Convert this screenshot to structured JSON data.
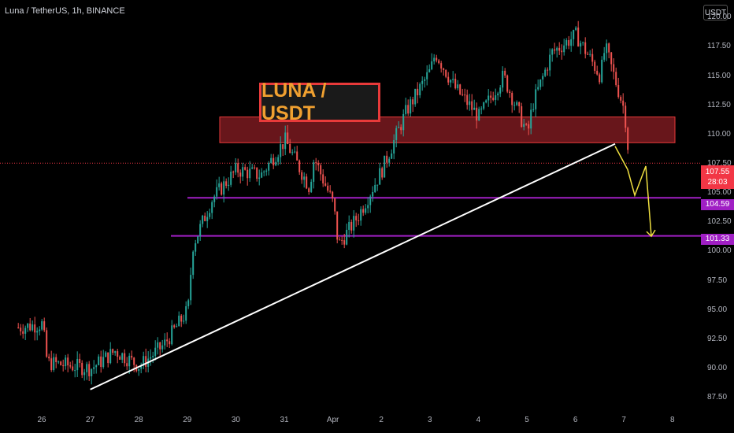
{
  "header": {
    "symbol_title": "Luna / TetherUS, 1h, BINANCE",
    "currency": "USDT"
  },
  "annotation": {
    "pair_label": "LUNA / USDT"
  },
  "colors": {
    "background": "#000000",
    "up_candle": "#26a69a",
    "down_candle": "#ef5350",
    "resistance_zone": "#7a1a20",
    "support_line": "#a01fc4",
    "trendline": "#ffffff",
    "projection": "#f0e040",
    "label_text": "#f0a030",
    "label_border": "#e83a3a"
  },
  "chart_data": {
    "type": "candlestick",
    "timeframe": "1h",
    "y_ticks": [
      "120.00",
      "117.50",
      "115.00",
      "112.50",
      "110.00",
      "107.50",
      "105.00",
      "102.50",
      "100.00",
      "97.50",
      "95.00",
      "92.50",
      "90.00",
      "87.50"
    ],
    "x_ticks": [
      "26",
      "27",
      "28",
      "29",
      "30",
      "31",
      "Apr",
      "2",
      "3",
      "4",
      "5",
      "6",
      "7",
      "8"
    ],
    "ylim": [
      86.5,
      121.5
    ],
    "last_price": "107.55",
    "countdown": "28:03",
    "support_levels": [
      "104.59",
      "101.33"
    ],
    "resistance_zone": [
      109.3,
      111.5
    ],
    "trendline": {
      "from": [
        "27",
        88.2
      ],
      "to": [
        "7",
        109.2
      ]
    },
    "projection": [
      [
        "7",
        109.0
      ],
      [
        "7",
        107.0
      ],
      [
        "7",
        104.8
      ],
      [
        "7",
        107.3
      ],
      [
        "8",
        101.3
      ]
    ],
    "close_path": [
      [
        "25.5",
        93.5
      ],
      [
        "26",
        93.8
      ],
      [
        "26",
        90.5
      ],
      [
        "27",
        90.0
      ],
      [
        "27.5",
        91.5
      ],
      [
        "28",
        90.2
      ],
      [
        "28.5",
        92.0
      ],
      [
        "29",
        95.0
      ],
      [
        "29",
        100.5
      ],
      [
        "29.5",
        104.5
      ],
      [
        "30",
        107.0
      ],
      [
        "30.5",
        106.5
      ],
      [
        "31",
        109.5
      ],
      [
        "31.5",
        105.5
      ],
      [
        "31.5",
        108.0
      ],
      [
        "Apr",
        104.0
      ],
      [
        "Apr",
        100.5
      ],
      [
        "1.5",
        103.0
      ],
      [
        "2",
        107.0
      ],
      [
        "2.5",
        112.0
      ],
      [
        "3",
        115.5
      ],
      [
        "3",
        117.0
      ],
      [
        "3.5",
        114.0
      ],
      [
        "4",
        111.5
      ],
      [
        "4.5",
        115.0
      ],
      [
        "5",
        110.0
      ],
      [
        "5",
        112.5
      ],
      [
        "5.5",
        117.0
      ],
      [
        "6",
        118.5
      ],
      [
        "6.5",
        115.0
      ],
      [
        "6.5",
        117.5
      ],
      [
        "7",
        112.0
      ],
      [
        "7",
        107.55
      ]
    ]
  }
}
